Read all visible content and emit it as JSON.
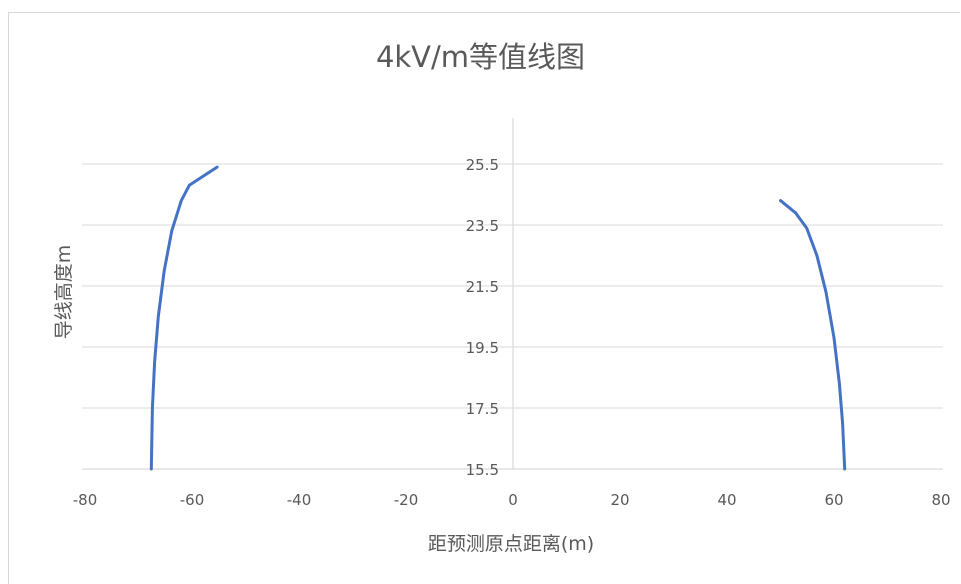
{
  "chart_data": {
    "type": "line",
    "title": "4kV/m等值线图",
    "xlabel": "距预测原点距离(m)",
    "ylabel": "导线高度m",
    "xlim": [
      -80,
      80
    ],
    "ylim": [
      15.5,
      27
    ],
    "xticks": [
      -80,
      -60,
      -40,
      -20,
      0,
      20,
      40,
      60,
      80
    ],
    "yticks": [
      15.5,
      17.5,
      19.5,
      21.5,
      23.5,
      25.5
    ],
    "ytick_labels": [
      "15.5",
      "17.5",
      "19.5",
      "21.5",
      "23.5",
      "25.5"
    ],
    "grid": true,
    "color": "#4472c4",
    "series": [
      {
        "points": [
          [
            -67.6,
            15.5
          ],
          [
            -67.4,
            17.5
          ],
          [
            -67.0,
            19.0
          ],
          [
            -66.3,
            20.5
          ],
          [
            -65.2,
            22.0
          ],
          [
            -63.8,
            23.3
          ],
          [
            -62.0,
            24.3
          ],
          [
            -60.5,
            24.8
          ],
          [
            -55.3,
            25.4
          ]
        ]
      },
      {
        "points": [
          [
            50.0,
            24.3
          ],
          [
            52.8,
            23.9
          ],
          [
            54.9,
            23.4
          ],
          [
            56.8,
            22.5
          ],
          [
            58.5,
            21.3
          ],
          [
            60.0,
            19.8
          ],
          [
            61.0,
            18.3
          ],
          [
            61.6,
            17.0
          ],
          [
            62.0,
            15.5
          ]
        ]
      }
    ]
  }
}
